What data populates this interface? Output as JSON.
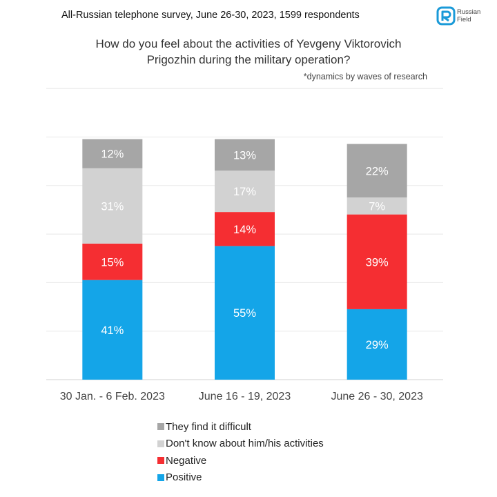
{
  "header": {
    "survey_info": "All-Russian telephone survey, June 26-30, 2023, 1599 respondents",
    "logo_line1": "Russian",
    "logo_line2": "Field",
    "logo_color": "#1a9ad8"
  },
  "chart_data": {
    "type": "bar",
    "stacked": true,
    "title_line1": "How do you feel about the activities of Yevgeny Viktorovich",
    "title_line2": "Prigozhin during the military operation?",
    "subtitle": "*dynamics by waves of research",
    "categories": [
      "30 Jan. - 6 Feb. 2023",
      "June 16 - 19, 2023",
      "June 26 - 30, 2023"
    ],
    "series": [
      {
        "name": "Positive",
        "color": "#14a5e8",
        "values": [
          41,
          55,
          29
        ]
      },
      {
        "name": "Negative",
        "color": "#f52e32",
        "values": [
          15,
          14,
          39
        ]
      },
      {
        "name": "Don't know about him/his activities",
        "color": "#d2d2d2",
        "values": [
          31,
          17,
          7
        ]
      },
      {
        "name": "They find it difficult",
        "color": "#a6a6a6",
        "values": [
          12,
          13,
          22
        ]
      }
    ],
    "ylim": [
      0,
      100
    ],
    "grid": true,
    "legend_position": "bottom",
    "legend_order": [
      3,
      2,
      1,
      0
    ]
  }
}
